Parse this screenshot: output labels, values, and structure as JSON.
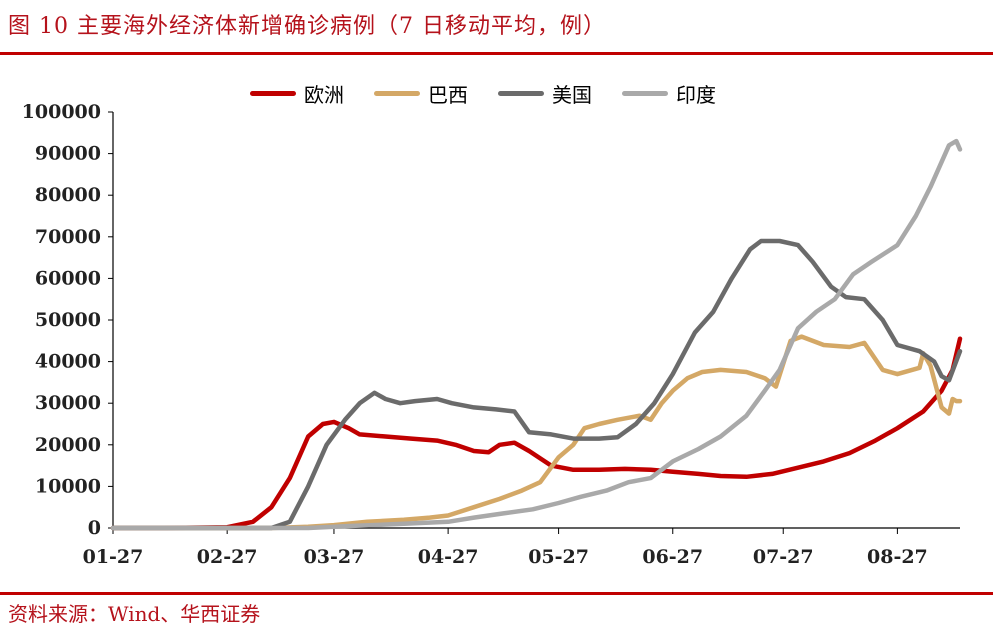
{
  "header": {
    "title": "图 10 主要海外经济体新增确诊病例（7 日移动平均，例）"
  },
  "footer": {
    "source": "资料来源：Wind、华西证券"
  },
  "colors": {
    "accent": "#c00000",
    "europe": "#c00000",
    "brazil": "#d4a866",
    "usa": "#6b6b6b",
    "india": "#a9a9a9"
  },
  "chart_data": {
    "type": "line",
    "title": "主要海外经济体新增确诊病例（7 日移动平均，例）",
    "xlabel": "",
    "ylabel": "",
    "x_start": "01-27",
    "x_end": "09-13",
    "x_ticks": [
      "01-27",
      "02-27",
      "03-27",
      "04-27",
      "05-27",
      "06-27",
      "07-27",
      "08-27"
    ],
    "y_ticks": [
      0,
      10000,
      20000,
      30000,
      40000,
      50000,
      60000,
      70000,
      80000,
      90000,
      100000
    ],
    "ylim": [
      0,
      100000
    ],
    "grid": false,
    "legend_position": "top-center",
    "series": [
      {
        "name": "欧洲",
        "color": "#c00000",
        "points": [
          [
            "01-27",
            0
          ],
          [
            "02-10",
            0
          ],
          [
            "02-27",
            200
          ],
          [
            "03-05",
            1500
          ],
          [
            "03-10",
            5000
          ],
          [
            "03-15",
            12000
          ],
          [
            "03-20",
            22000
          ],
          [
            "03-24",
            25000
          ],
          [
            "03-27",
            25500
          ],
          [
            "03-31",
            24000
          ],
          [
            "04-03",
            22500
          ],
          [
            "04-10",
            22000
          ],
          [
            "04-17",
            21500
          ],
          [
            "04-24",
            21000
          ],
          [
            "04-29",
            20000
          ],
          [
            "05-04",
            18500
          ],
          [
            "05-08",
            18200
          ],
          [
            "05-11",
            20000
          ],
          [
            "05-15",
            20500
          ],
          [
            "05-19",
            18500
          ],
          [
            "05-25",
            15000
          ],
          [
            "05-31",
            14000
          ],
          [
            "06-07",
            14000
          ],
          [
            "06-14",
            14200
          ],
          [
            "06-21",
            14000
          ],
          [
            "06-27",
            13500
          ],
          [
            "07-04",
            13000
          ],
          [
            "07-10",
            12500
          ],
          [
            "07-17",
            12300
          ],
          [
            "07-24",
            13000
          ],
          [
            "07-31",
            14500
          ],
          [
            "08-07",
            16000
          ],
          [
            "08-14",
            18000
          ],
          [
            "08-21",
            21000
          ],
          [
            "08-27",
            24000
          ],
          [
            "09-03",
            28000
          ],
          [
            "09-08",
            33000
          ],
          [
            "09-11",
            38000
          ],
          [
            "09-13",
            45500
          ]
        ]
      },
      {
        "name": "巴西",
        "color": "#d4a866",
        "points": [
          [
            "01-27",
            0
          ],
          [
            "03-10",
            0
          ],
          [
            "03-20",
            300
          ],
          [
            "03-27",
            700
          ],
          [
            "04-05",
            1500
          ],
          [
            "04-15",
            2000
          ],
          [
            "04-22",
            2500
          ],
          [
            "04-27",
            3000
          ],
          [
            "05-04",
            5000
          ],
          [
            "05-11",
            7000
          ],
          [
            "05-17",
            9000
          ],
          [
            "05-22",
            11000
          ],
          [
            "05-27",
            17000
          ],
          [
            "05-31",
            20000
          ],
          [
            "06-03",
            24000
          ],
          [
            "06-07",
            25000
          ],
          [
            "06-12",
            26000
          ],
          [
            "06-18",
            27000
          ],
          [
            "06-21",
            26000
          ],
          [
            "06-24",
            30000
          ],
          [
            "06-27",
            33000
          ],
          [
            "07-01",
            36000
          ],
          [
            "07-05",
            37500
          ],
          [
            "07-10",
            38000
          ],
          [
            "07-17",
            37500
          ],
          [
            "07-22",
            36000
          ],
          [
            "07-25",
            34000
          ],
          [
            "07-29",
            45000
          ],
          [
            "08-01",
            46000
          ],
          [
            "08-07",
            44000
          ],
          [
            "08-14",
            43500
          ],
          [
            "08-18",
            44500
          ],
          [
            "08-23",
            38000
          ],
          [
            "08-27",
            37000
          ],
          [
            "09-02",
            38500
          ],
          [
            "09-03",
            42000
          ],
          [
            "09-05",
            39000
          ],
          [
            "09-08",
            29000
          ],
          [
            "09-10",
            27500
          ],
          [
            "09-11",
            31000
          ],
          [
            "09-12",
            30500
          ],
          [
            "09-13",
            30500
          ]
        ]
      },
      {
        "name": "美国",
        "color": "#6b6b6b",
        "points": [
          [
            "01-27",
            0
          ],
          [
            "03-10",
            0
          ],
          [
            "03-15",
            1500
          ],
          [
            "03-20",
            10000
          ],
          [
            "03-25",
            20000
          ],
          [
            "03-30",
            26000
          ],
          [
            "04-03",
            30000
          ],
          [
            "04-07",
            32500
          ],
          [
            "04-10",
            31000
          ],
          [
            "04-14",
            30000
          ],
          [
            "04-18",
            30500
          ],
          [
            "04-24",
            31000
          ],
          [
            "04-28",
            30000
          ],
          [
            "05-04",
            29000
          ],
          [
            "05-10",
            28500
          ],
          [
            "05-15",
            28000
          ],
          [
            "05-19",
            23000
          ],
          [
            "05-25",
            22500
          ],
          [
            "05-31",
            21500
          ],
          [
            "06-07",
            21500
          ],
          [
            "06-12",
            21800
          ],
          [
            "06-17",
            25000
          ],
          [
            "06-22",
            30000
          ],
          [
            "06-27",
            37000
          ],
          [
            "07-03",
            47000
          ],
          [
            "07-08",
            52000
          ],
          [
            "07-13",
            60000
          ],
          [
            "07-18",
            67000
          ],
          [
            "07-21",
            69000
          ],
          [
            "07-26",
            69000
          ],
          [
            "07-31",
            68000
          ],
          [
            "08-04",
            64000
          ],
          [
            "08-09",
            58000
          ],
          [
            "08-13",
            55500
          ],
          [
            "08-18",
            55000
          ],
          [
            "08-23",
            50000
          ],
          [
            "08-27",
            44000
          ],
          [
            "09-02",
            42500
          ],
          [
            "09-06",
            40000
          ],
          [
            "09-08",
            36500
          ],
          [
            "09-10",
            35500
          ],
          [
            "09-13",
            42500
          ]
        ]
      },
      {
        "name": "印度",
        "color": "#a9a9a9",
        "points": [
          [
            "01-27",
            0
          ],
          [
            "03-20",
            0
          ],
          [
            "04-01",
            500
          ],
          [
            "04-15",
            1000
          ],
          [
            "04-27",
            1500
          ],
          [
            "05-04",
            2500
          ],
          [
            "05-12",
            3500
          ],
          [
            "05-20",
            4500
          ],
          [
            "05-27",
            6000
          ],
          [
            "06-02",
            7500
          ],
          [
            "06-09",
            9000
          ],
          [
            "06-15",
            11000
          ],
          [
            "06-21",
            12000
          ],
          [
            "06-27",
            16000
          ],
          [
            "07-04",
            19000
          ],
          [
            "07-10",
            22000
          ],
          [
            "07-17",
            27000
          ],
          [
            "07-22",
            33000
          ],
          [
            "07-26",
            38000
          ],
          [
            "07-31",
            48000
          ],
          [
            "08-05",
            52000
          ],
          [
            "08-10",
            55000
          ],
          [
            "08-15",
            61000
          ],
          [
            "08-20",
            64000
          ],
          [
            "08-27",
            68000
          ],
          [
            "09-01",
            75000
          ],
          [
            "09-05",
            82000
          ],
          [
            "09-08",
            88000
          ],
          [
            "09-10",
            92000
          ],
          [
            "09-12",
            93000
          ],
          [
            "09-13",
            91000
          ]
        ]
      }
    ]
  }
}
